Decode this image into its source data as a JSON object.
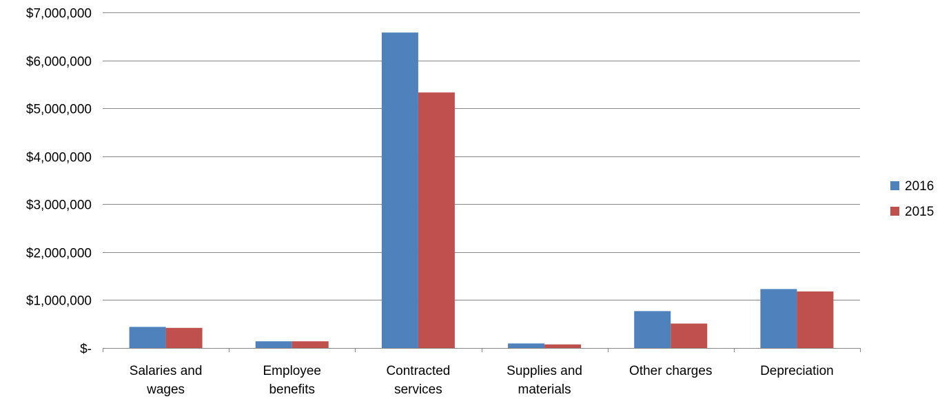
{
  "chart_data": {
    "type": "bar",
    "categories": [
      [
        "Salaries and",
        "wages"
      ],
      [
        "Employee",
        "benefits"
      ],
      [
        "Contracted",
        "services"
      ],
      [
        "Supplies and",
        "materials"
      ],
      [
        "Other charges"
      ],
      [
        "Depreciation"
      ]
    ],
    "series": [
      {
        "name": "2016",
        "color": "#4F81BD",
        "values": [
          440000,
          140000,
          6580000,
          95000,
          770000,
          1230000
        ]
      },
      {
        "name": "2015",
        "color": "#C0504D",
        "values": [
          420000,
          140000,
          5330000,
          75000,
          510000,
          1180000
        ]
      }
    ],
    "ylim": [
      0,
      7000000
    ],
    "yticks": [
      {
        "value": 0,
        "label": "$-"
      },
      {
        "value": 1000000,
        "label": "$1,000,000"
      },
      {
        "value": 2000000,
        "label": "$2,000,000"
      },
      {
        "value": 3000000,
        "label": "$3,000,000"
      },
      {
        "value": 4000000,
        "label": "$4,000,000"
      },
      {
        "value": 5000000,
        "label": "$5,000,000"
      },
      {
        "value": 6000000,
        "label": "$6,000,000"
      },
      {
        "value": 7000000,
        "label": "$7,000,000"
      }
    ],
    "grid": true,
    "legend_position": "right",
    "title": "",
    "xlabel": "",
    "ylabel": ""
  }
}
